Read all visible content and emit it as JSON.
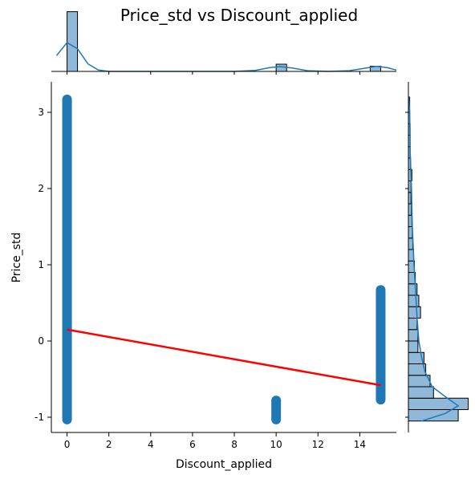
{
  "chart_data": {
    "type": "scatter",
    "title": "Price_std vs Discount_applied",
    "xlabel": "Discount_applied",
    "ylabel": "Price_std",
    "xlim": [
      -0.75,
      15.75
    ],
    "ylim": [
      -1.2,
      3.4
    ],
    "xticks": [
      "0",
      "2",
      "4",
      "6",
      "8",
      "10",
      "12",
      "14"
    ],
    "yticks": [
      "-1",
      "0",
      "1",
      "2",
      "3"
    ],
    "grid": false,
    "colors": {
      "points": "#1f77b4",
      "regression": "#ff0000",
      "hist_fill": "#8fb8d9",
      "hist_edge": "#000000",
      "kde": "#1f77b4"
    },
    "point_groups": [
      {
        "x": 0,
        "y_min": -1.03,
        "y_max": 3.17
      },
      {
        "x": 10,
        "y_min": -1.03,
        "y_max": -0.78
      },
      {
        "x": 15,
        "y_min": -0.77,
        "y_max": 0.67
      }
    ],
    "regression_line": {
      "x": [
        0,
        15
      ],
      "y": [
        0.15,
        -0.58
      ]
    },
    "marginal_x_hist": {
      "bins": [
        {
          "x0": 0,
          "x1": 0.5,
          "count": 870
        },
        {
          "x0": 10,
          "x1": 10.5,
          "count": 105
        },
        {
          "x0": 14.5,
          "x1": 15,
          "count": 75
        }
      ],
      "max_count": 900,
      "kde": [
        [
          -0.5,
          230
        ],
        [
          0,
          420
        ],
        [
          0.5,
          330
        ],
        [
          1,
          110
        ],
        [
          1.5,
          20
        ],
        [
          2,
          0
        ],
        [
          8,
          0
        ],
        [
          9,
          15
        ],
        [
          9.7,
          55
        ],
        [
          10.2,
          70
        ],
        [
          10.8,
          48
        ],
        [
          11.5,
          10
        ],
        [
          12.5,
          0
        ],
        [
          13.5,
          10
        ],
        [
          14.2,
          45
        ],
        [
          14.8,
          75
        ],
        [
          15.3,
          55
        ],
        [
          15.75,
          20
        ]
      ]
    },
    "marginal_y_hist": {
      "bins": [
        {
          "y0": -1.05,
          "y1": -0.9,
          "count": 115
        },
        {
          "y0": -0.9,
          "y1": -0.75,
          "count": 138
        },
        {
          "y0": -0.75,
          "y1": -0.6,
          "count": 58
        },
        {
          "y0": -0.6,
          "y1": -0.45,
          "count": 50
        },
        {
          "y0": -0.45,
          "y1": -0.3,
          "count": 40
        },
        {
          "y0": -0.3,
          "y1": -0.15,
          "count": 36
        },
        {
          "y0": -0.15,
          "y1": 0.0,
          "count": 22
        },
        {
          "y0": 0.0,
          "y1": 0.15,
          "count": 22
        },
        {
          "y0": 0.15,
          "y1": 0.3,
          "count": 20
        },
        {
          "y0": 0.3,
          "y1": 0.45,
          "count": 28
        },
        {
          "y0": 0.45,
          "y1": 0.6,
          "count": 24
        },
        {
          "y0": 0.6,
          "y1": 0.75,
          "count": 20
        },
        {
          "y0": 0.75,
          "y1": 0.9,
          "count": 16
        },
        {
          "y0": 0.9,
          "y1": 1.05,
          "count": 14
        },
        {
          "y0": 1.05,
          "y1": 1.2,
          "count": 12
        },
        {
          "y0": 1.2,
          "y1": 1.35,
          "count": 10
        },
        {
          "y0": 1.35,
          "y1": 1.5,
          "count": 9
        },
        {
          "y0": 1.5,
          "y1": 1.65,
          "count": 8
        },
        {
          "y0": 1.65,
          "y1": 1.8,
          "count": 7
        },
        {
          "y0": 1.8,
          "y1": 1.95,
          "count": 6
        },
        {
          "y0": 1.95,
          "y1": 2.1,
          "count": 6
        },
        {
          "y0": 2.1,
          "y1": 2.25,
          "count": 8
        },
        {
          "y0": 2.25,
          "y1": 2.4,
          "count": 5
        },
        {
          "y0": 2.4,
          "y1": 2.55,
          "count": 4
        },
        {
          "y0": 2.55,
          "y1": 2.7,
          "count": 4
        },
        {
          "y0": 2.7,
          "y1": 2.85,
          "count": 4
        },
        {
          "y0": 2.85,
          "y1": 3.0,
          "count": 3
        },
        {
          "y0": 3.0,
          "y1": 3.2,
          "count": 3
        }
      ],
      "max_count": 150,
      "kde": [
        [
          -1.05,
          30
        ],
        [
          -0.95,
          85
        ],
        [
          -0.85,
          115
        ],
        [
          -0.75,
          90
        ],
        [
          -0.6,
          55
        ],
        [
          -0.4,
          38
        ],
        [
          -0.2,
          30
        ],
        [
          0.0,
          24
        ],
        [
          0.3,
          20
        ],
        [
          0.6,
          17
        ],
        [
          1.0,
          13
        ],
        [
          1.5,
          9
        ],
        [
          2.0,
          7
        ],
        [
          2.5,
          4
        ],
        [
          3.0,
          3
        ],
        [
          3.2,
          1
        ]
      ]
    }
  }
}
